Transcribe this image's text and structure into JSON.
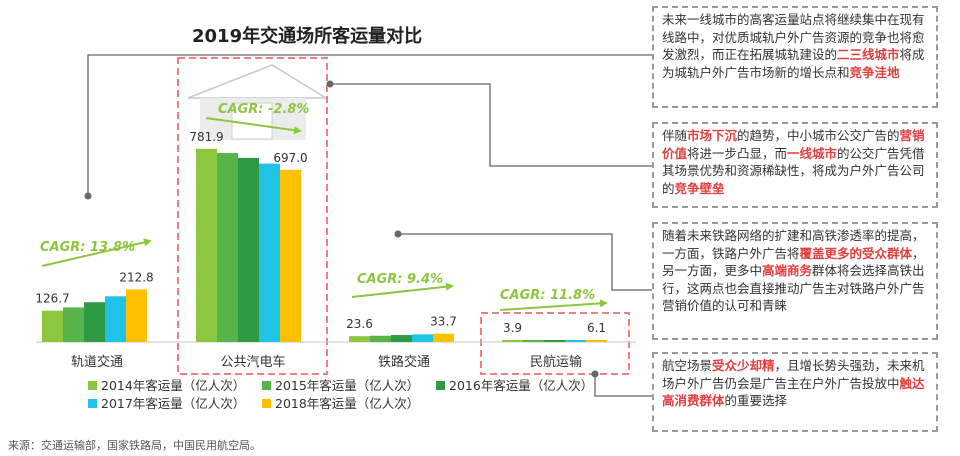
{
  "chart_data": {
    "type": "bar",
    "title": "2019年交通场所客运量对比",
    "categories": [
      "轨道交通",
      "公共汽电车",
      "铁路交通",
      "民航运输"
    ],
    "series": [
      {
        "name": "2014年客运量（亿人次）",
        "color": "#8dc63f",
        "values": [
          126.7,
          781.9,
          23.6,
          3.9
        ]
      },
      {
        "name": "2015年客运量（亿人次）",
        "color": "#56b44a",
        "values": [
          140,
          765,
          25.3,
          4.4
        ]
      },
      {
        "name": "2016年客运量（亿人次）",
        "color": "#2f9a44",
        "values": [
          161,
          745,
          28.1,
          4.9
        ]
      },
      {
        "name": "2017年客运量（亿人次）",
        "color": "#1ec3e6",
        "values": [
          185,
          722,
          30.8,
          5.5
        ]
      },
      {
        "name": "2018年客运量（亿人次）",
        "color": "#ffc000",
        "values": [
          212.8,
          697.0,
          33.7,
          6.1
        ]
      }
    ],
    "value_labels": [
      {
        "first": "126.7",
        "last": "212.8"
      },
      {
        "first": "781.9",
        "last": "697.0"
      },
      {
        "first": "23.6",
        "last": "33.7"
      },
      {
        "first": "3.9",
        "last": "6.1"
      }
    ],
    "cagr_labels": [
      "CAGR: 13.8%",
      "CAGR: -2.8%",
      "CAGR: 9.4%",
      "CAGR: 11.8%"
    ],
    "ylim": [
      0,
      850
    ],
    "grid": false,
    "legend_position": "bottom"
  },
  "notes": [
    [
      {
        "t": "未来一线城市的高客运量站点将继续集中在现有线路中，对优质城轨户外广告资源的竞争也将愈发激烈，而正在拓展城轨建设的"
      },
      {
        "t": "二三线城市",
        "hl": true
      },
      {
        "t": "将成为城轨户外广告市场新的增长点和"
      },
      {
        "t": "竞争洼地",
        "hl": true
      }
    ],
    [
      {
        "t": "伴随"
      },
      {
        "t": "市场下沉",
        "hl": true
      },
      {
        "t": "的趋势，中小城市公交广告的"
      },
      {
        "t": "营销价值",
        "hl": true
      },
      {
        "t": "将进一步凸显，而"
      },
      {
        "t": "一线城市",
        "hl": true
      },
      {
        "t": "的公交广告凭借其场景优势和资源稀缺性，将成为户外广告公司的"
      },
      {
        "t": "竞争壁垒",
        "hl": true
      }
    ],
    [
      {
        "t": "随着未来铁路网络的扩建和高铁渗透率的提高，一方面，铁路户外广告将"
      },
      {
        "t": "覆盖更多的受众群体",
        "hl": true
      },
      {
        "t": "，另一方面，更多中"
      },
      {
        "t": "高端商务",
        "hl": true
      },
      {
        "t": "群体将会选择高铁出行，这两点也会直接推动广告主对铁路户外广告营销价值的认可和青睐"
      }
    ],
    [
      {
        "t": "航空场景"
      },
      {
        "t": "受众少却精",
        "hl": true
      },
      {
        "t": "，且增长势头强劲，未来机场户外广告仍会是广告主在户外广告投放中"
      },
      {
        "t": "触达高消费群体",
        "hl": true
      },
      {
        "t": "的重要选择"
      }
    ]
  ],
  "source": "来源：交通运输部，国家铁路局，中国民用航空局。"
}
